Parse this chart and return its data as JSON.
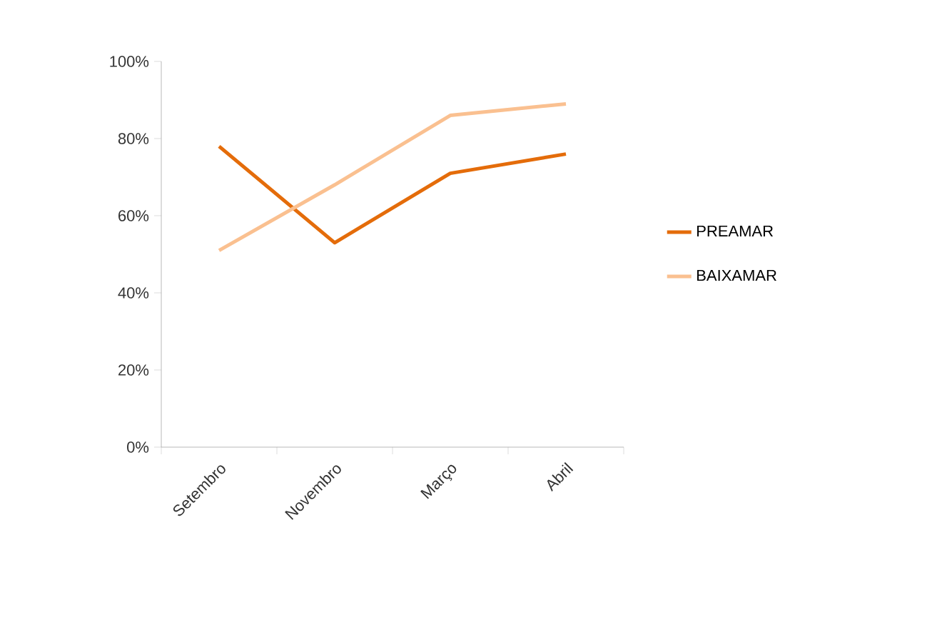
{
  "chart_data": {
    "type": "line",
    "categories": [
      "Setembro",
      "Novembro",
      "Março",
      "Abril"
    ],
    "series": [
      {
        "name": "PREAMAR",
        "color": "#e46c0a",
        "values": [
          78,
          53,
          71,
          76
        ]
      },
      {
        "name": "BAIXAMAR",
        "color": "#fac090",
        "values": [
          51,
          68,
          86,
          89
        ]
      }
    ],
    "ylim": [
      0,
      100
    ],
    "yticks": [
      {
        "value": 0,
        "label": "0%"
      },
      {
        "value": 20,
        "label": "20%"
      },
      {
        "value": 40,
        "label": "40%"
      },
      {
        "value": 60,
        "label": "60%"
      },
      {
        "value": 80,
        "label": "80%"
      },
      {
        "value": 100,
        "label": "100%"
      }
    ],
    "grid": false,
    "legend": "right",
    "marker": "none",
    "line_style": "solid"
  }
}
